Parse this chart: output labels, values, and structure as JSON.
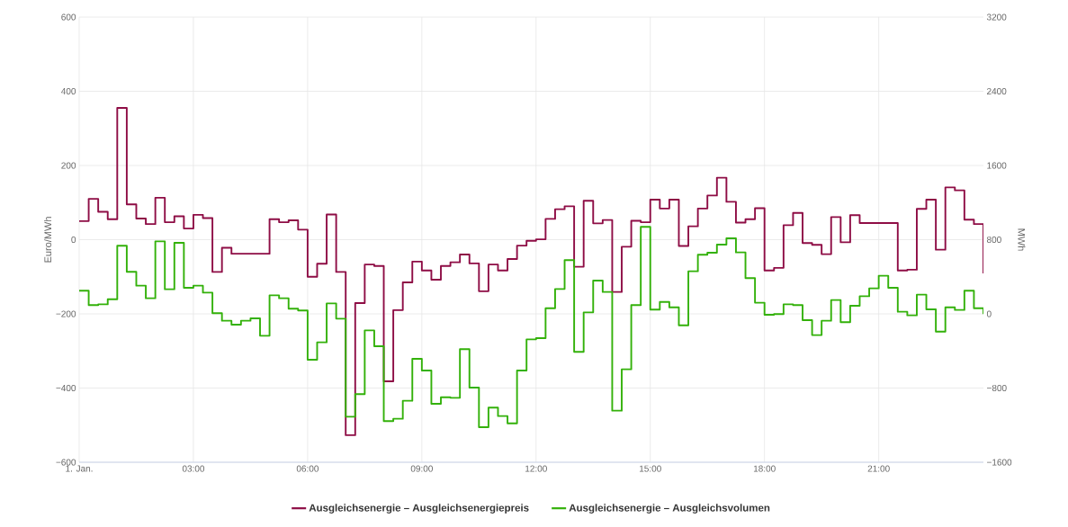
{
  "chart_data": {
    "type": "step",
    "x": [
      0,
      0.25,
      0.5,
      0.75,
      1,
      1.25,
      1.5,
      1.75,
      2,
      2.25,
      2.5,
      2.75,
      3,
      3.25,
      3.5,
      3.75,
      4,
      4.25,
      4.5,
      4.75,
      5,
      5.25,
      5.5,
      5.75,
      6,
      6.25,
      6.5,
      6.75,
      7,
      7.25,
      7.5,
      7.75,
      8,
      8.25,
      8.5,
      8.75,
      9,
      9.25,
      9.5,
      9.75,
      10,
      10.25,
      10.5,
      10.75,
      11,
      11.25,
      11.5,
      11.75,
      12,
      12.25,
      12.5,
      12.75,
      13,
      13.25,
      13.5,
      13.75,
      14,
      14.25,
      14.5,
      14.75,
      15,
      15.25,
      15.5,
      15.75,
      16,
      16.25,
      16.5,
      16.75,
      17,
      17.25,
      17.5,
      17.75,
      18,
      18.25,
      18.5,
      18.75,
      19,
      19.25,
      19.5,
      19.75,
      20,
      20.25,
      20.5,
      20.75,
      21,
      21.25,
      21.5,
      21.75,
      22,
      22.25,
      22.5,
      22.75,
      23,
      23.25,
      23.5,
      23.75
    ],
    "series": [
      {
        "name": "Ausgleichsenergie – Ausgleichsenergiepreis",
        "color": "#8e0d45",
        "values": [
          50,
          110,
          75,
          55,
          355,
          95,
          57,
          42,
          113,
          47,
          63,
          30,
          67,
          58,
          -87,
          -22,
          -38,
          -38,
          -38,
          -38,
          55,
          47,
          52,
          27,
          -100,
          -65,
          68,
          -87,
          -527,
          -171,
          -67,
          -71,
          -382,
          -190,
          -115,
          -59,
          -83,
          -108,
          -71,
          -61,
          -40,
          -64,
          -139,
          -67,
          -83,
          -52,
          -16,
          -3,
          1,
          56,
          82,
          90,
          -73,
          105,
          44,
          53,
          -141,
          -19,
          51,
          47,
          108,
          84,
          108,
          -17,
          36,
          84,
          119,
          167,
          102,
          46,
          55,
          85,
          -83,
          -76,
          39,
          72,
          -9,
          -14,
          -39,
          61,
          -7,
          66,
          45,
          45,
          45,
          45,
          -83,
          -81,
          83,
          108,
          -27,
          141,
          133,
          54,
          42,
          -91
        ]
      },
      {
        "name": "Ausgleichsenergie – Ausgleichsvolumen",
        "color": "#33b10a",
        "axis": "y2",
        "values": [
          249,
          94,
          103,
          158,
          734,
          453,
          304,
          168,
          782,
          265,
          766,
          281,
          304,
          229,
          7,
          -74,
          -116,
          -74,
          -48,
          -236,
          200,
          168,
          55,
          36,
          -495,
          -307,
          113,
          -52,
          -1109,
          -866,
          -178,
          -349,
          -1157,
          -1131,
          -937,
          -485,
          -611,
          -970,
          -899,
          -905,
          -381,
          -795,
          -1222,
          -1011,
          -1102,
          -1180,
          -611,
          -275,
          -262,
          61,
          268,
          579,
          -410,
          16,
          359,
          236,
          -1044,
          -598,
          94,
          938,
          46,
          129,
          71,
          -123,
          459,
          637,
          659,
          747,
          815,
          663,
          385,
          120,
          -10,
          -3,
          103,
          94,
          -68,
          -229,
          -74,
          149,
          -90,
          87,
          190,
          275,
          411,
          281,
          23,
          -16,
          207,
          48,
          -191,
          71,
          42,
          249,
          61,
          -3
        ]
      }
    ],
    "ylabel": "Euro/MWh",
    "y2label": "MWh",
    "xlim": [
      0,
      23.75
    ],
    "ylim": [
      -600,
      600
    ],
    "y2lim": [
      -1600,
      3200
    ],
    "xticks": [
      {
        "value": 0,
        "label": "1. Jan."
      },
      {
        "value": 3,
        "label": "03:00"
      },
      {
        "value": 6,
        "label": "06:00"
      },
      {
        "value": 9,
        "label": "09:00"
      },
      {
        "value": 12,
        "label": "12:00"
      },
      {
        "value": 15,
        "label": "15:00"
      },
      {
        "value": 18,
        "label": "18:00"
      },
      {
        "value": 21,
        "label": "21:00"
      }
    ],
    "yticks": [
      {
        "value": -600,
        "label": "−600"
      },
      {
        "value": -400,
        "label": "−400"
      },
      {
        "value": -200,
        "label": "−200"
      },
      0,
      200,
      400,
      600
    ],
    "y2ticks": [
      {
        "value": -1600,
        "label": "−1600"
      },
      {
        "value": -800,
        "label": "−800"
      },
      0,
      800,
      1600,
      2400,
      3200
    ],
    "grid": true,
    "legend": "bottom"
  }
}
